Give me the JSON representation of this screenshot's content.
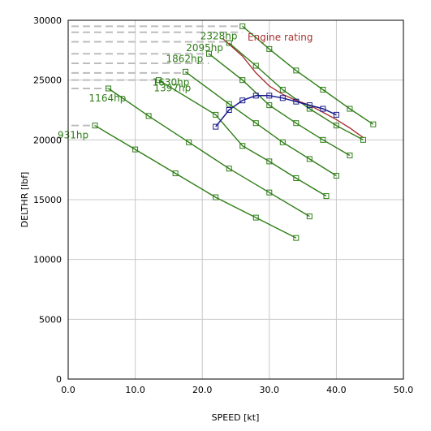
{
  "chart_data": {
    "type": "line",
    "xlabel": "SPEED [kt]",
    "ylabel": "DELTHR [lbf]",
    "xlim": [
      0,
      50
    ],
    "ylim": [
      0,
      30000
    ],
    "x_ticks": [
      "0.0",
      "10.0",
      "20.0",
      "30.0",
      "40.0",
      "50.0"
    ],
    "y_ticks": [
      "0",
      "5000",
      "10000",
      "15000",
      "20000",
      "25000",
      "30000"
    ],
    "grid": true,
    "colors": {
      "power_lines": "#2e7d16",
      "engine_rating": "#a83232",
      "operating_line": "#1a1a8c",
      "ref_lines": "#bdbdbd",
      "grid": "#c8c8c8"
    },
    "series": [
      {
        "name": "931hp",
        "points": [
          [
            4,
            21200
          ],
          [
            10,
            19200
          ],
          [
            16,
            17200
          ],
          [
            22,
            15200
          ],
          [
            28,
            13500
          ],
          [
            34,
            11800
          ]
        ]
      },
      {
        "name": "1164hp",
        "points": [
          [
            6,
            24300
          ],
          [
            12,
            22000
          ],
          [
            18,
            19800
          ],
          [
            24,
            17600
          ],
          [
            30,
            15600
          ],
          [
            36,
            13600
          ]
        ]
      },
      {
        "name": "1397hp",
        "points": [
          [
            13.5,
            25000
          ],
          [
            22,
            22100
          ],
          [
            26,
            19500
          ],
          [
            30,
            18200
          ],
          [
            34,
            16800
          ],
          [
            38.5,
            15300
          ]
        ]
      },
      {
        "name": "1630hp",
        "points": [
          [
            17.5,
            25700
          ],
          [
            24,
            23000
          ],
          [
            28,
            21400
          ],
          [
            32,
            19800
          ],
          [
            36,
            18400
          ],
          [
            40,
            17000
          ]
        ]
      },
      {
        "name": "1862hp",
        "points": [
          [
            21,
            27200
          ],
          [
            26,
            25000
          ],
          [
            30,
            22900
          ],
          [
            34,
            21400
          ],
          [
            38,
            20000
          ],
          [
            42,
            18700
          ]
        ]
      },
      {
        "name": "2095hp",
        "points": [
          [
            24,
            28100
          ],
          [
            28,
            26200
          ],
          [
            32,
            24200
          ],
          [
            36,
            22600
          ],
          [
            40,
            21200
          ],
          [
            44,
            20000
          ]
        ]
      },
      {
        "name": "2328hp",
        "points": [
          [
            26,
            29500
          ],
          [
            30,
            27600
          ],
          [
            34,
            25800
          ],
          [
            38,
            24200
          ],
          [
            42,
            22600
          ],
          [
            45.5,
            21300
          ]
        ]
      }
    ],
    "engine_rating": {
      "name": "Engine rating",
      "points": [
        [
          23,
          28500
        ],
        [
          26,
          27000
        ],
        [
          28,
          25600
        ],
        [
          30,
          24500
        ],
        [
          32,
          23800
        ],
        [
          34,
          23300
        ],
        [
          36,
          22900
        ],
        [
          38,
          22300
        ],
        [
          40,
          21700
        ],
        [
          42,
          21000
        ],
        [
          44,
          20200
        ]
      ]
    },
    "operating_line": {
      "points": [
        [
          22,
          21100
        ],
        [
          24,
          22500
        ],
        [
          26,
          23300
        ],
        [
          28,
          23700
        ],
        [
          30,
          23700
        ],
        [
          32,
          23500
        ],
        [
          34,
          23200
        ],
        [
          36,
          22900
        ],
        [
          38,
          22600
        ],
        [
          40,
          22100
        ]
      ]
    },
    "reference_lines": [
      {
        "y": 29500,
        "x_end": 26
      },
      {
        "y": 29000,
        "x_end": 26
      },
      {
        "y": 28200,
        "x_end": 24
      },
      {
        "y": 27200,
        "x_end": 21
      },
      {
        "y": 26400,
        "x_end": 21
      },
      {
        "y": 25600,
        "x_end": 17.5
      },
      {
        "y": 25000,
        "x_end": 13.5
      },
      {
        "y": 24300,
        "x_end": 6
      },
      {
        "y": 21200,
        "x_end": 4
      }
    ]
  }
}
